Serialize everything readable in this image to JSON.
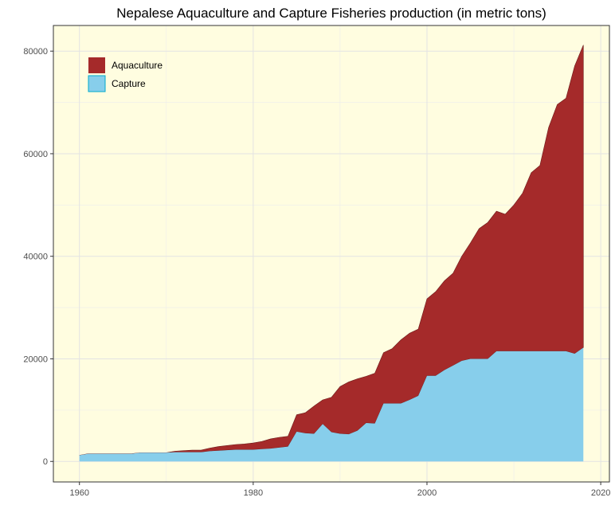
{
  "chart_data": {
    "type": "area",
    "stacked": true,
    "title": "Nepalese Aquaculture and Capture Fisheries production (in metric tons)",
    "xlabel": "",
    "ylabel": "",
    "xlim": [
      1957,
      2021
    ],
    "ylim": [
      -4000,
      85000
    ],
    "x_ticks": [
      1960,
      1980,
      2000,
      2020
    ],
    "y_ticks": [
      0,
      20000,
      40000,
      60000,
      80000
    ],
    "grid": true,
    "legend_position": "top-left",
    "background_color": "#fffde0",
    "x": [
      1960,
      1961,
      1962,
      1963,
      1964,
      1965,
      1966,
      1967,
      1968,
      1969,
      1970,
      1971,
      1972,
      1973,
      1974,
      1975,
      1976,
      1977,
      1978,
      1979,
      1980,
      1981,
      1982,
      1983,
      1984,
      1985,
      1986,
      1987,
      1988,
      1989,
      1990,
      1991,
      1992,
      1993,
      1994,
      1995,
      1996,
      1997,
      1998,
      1999,
      2000,
      2001,
      2002,
      2003,
      2004,
      2005,
      2006,
      2007,
      2008,
      2009,
      2010,
      2011,
      2012,
      2013,
      2014,
      2015,
      2016,
      2017,
      2018
    ],
    "series": [
      {
        "name": "Capture",
        "color": "#87ceeb",
        "stroke": "#00aacc",
        "values": [
          1200,
          1500,
          1500,
          1500,
          1500,
          1500,
          1500,
          1700,
          1700,
          1700,
          1700,
          1800,
          1800,
          1800,
          1800,
          2000,
          2100,
          2200,
          2300,
          2300,
          2300,
          2400,
          2500,
          2700,
          2900,
          5800,
          5500,
          5400,
          7300,
          5700,
          5400,
          5300,
          6000,
          7500,
          7400,
          11300,
          11300,
          11300,
          12000,
          12800,
          16700,
          16700,
          17800,
          18700,
          19600,
          20000,
          20000,
          20000,
          21500,
          21500,
          21500,
          21500,
          21500,
          21500,
          21500,
          21500,
          21500,
          21000,
          22200
        ]
      },
      {
        "name": "Aquaculture",
        "color": "#a52a2a",
        "stroke": "#6b1a1a",
        "values": [
          0,
          0,
          0,
          0,
          0,
          0,
          0,
          0,
          0,
          0,
          0,
          200,
          300,
          400,
          400,
          600,
          800,
          900,
          1000,
          1100,
          1300,
          1500,
          1900,
          2000,
          2000,
          3300,
          4000,
          5400,
          4700,
          6800,
          9200,
          10200,
          10100,
          9100,
          9800,
          9900,
          10700,
          12400,
          13000,
          13000,
          15000,
          16400,
          17400,
          18000,
          20400,
          22600,
          25400,
          26600,
          27300,
          26700,
          28500,
          30800,
          34800,
          36200,
          43600,
          48100,
          49300,
          56100,
          59000
        ]
      }
    ]
  }
}
